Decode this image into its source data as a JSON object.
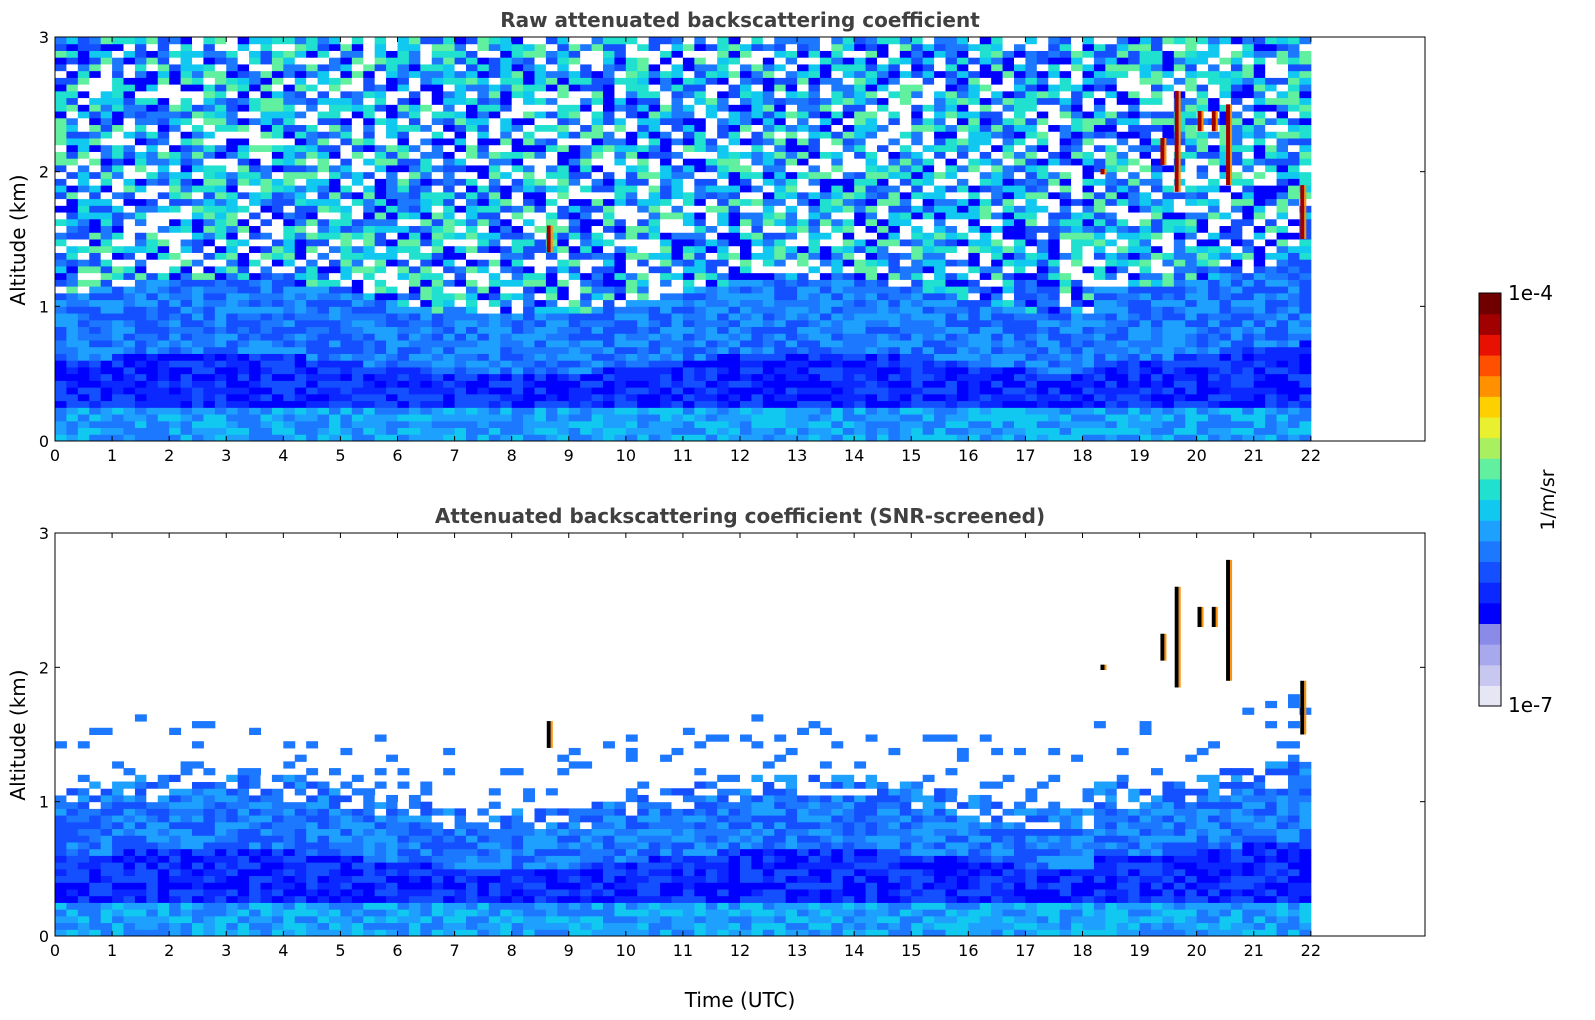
{
  "chart_data": [
    {
      "type": "heatmap",
      "title": "Raw attenuated backscattering coefficient",
      "xlabel": "",
      "ylabel": "Altitude (km)",
      "xlim": [
        0,
        24
      ],
      "ylim": [
        0,
        3
      ],
      "data_xlim": [
        0,
        22
      ],
      "xticks": [
        0,
        1,
        2,
        3,
        4,
        5,
        6,
        7,
        8,
        9,
        10,
        11,
        12,
        13,
        14,
        15,
        16,
        17,
        18,
        19,
        20,
        21,
        22
      ],
      "yticks": [
        0,
        1,
        2,
        3
      ],
      "colorscale": "log",
      "clim": [
        "1e-7",
        "1e-4"
      ],
      "description_layers": {
        "boundary_layer_top_km": 1.1,
        "surface_layer_top_km": 0.3,
        "noise_from_km": 1.0,
        "cloud_segments": [
          {
            "time": 8.65,
            "alt_min": 1.4,
            "alt_max": 1.6
          },
          {
            "time": 18.35,
            "alt_min": 1.98,
            "alt_max": 2.02
          },
          {
            "time": 19.4,
            "alt_min": 2.05,
            "alt_max": 2.25
          },
          {
            "time": 19.65,
            "alt_min": 1.85,
            "alt_max": 2.6
          },
          {
            "time": 20.05,
            "alt_min": 2.3,
            "alt_max": 2.45
          },
          {
            "time": 20.3,
            "alt_min": 2.3,
            "alt_max": 2.45
          },
          {
            "time": 20.55,
            "alt_min": 1.9,
            "alt_max": 2.5
          },
          {
            "time": 21.85,
            "alt_min": 1.5,
            "alt_max": 1.9
          }
        ]
      }
    },
    {
      "type": "heatmap",
      "title": "Attenuated backscattering coefficient (SNR-screened)",
      "xlabel": "Time (UTC)",
      "ylabel": "Altitude (km)",
      "xlim": [
        0,
        24
      ],
      "ylim": [
        0,
        3
      ],
      "data_xlim": [
        0,
        22
      ],
      "xticks": [
        0,
        1,
        2,
        3,
        4,
        5,
        6,
        7,
        8,
        9,
        10,
        11,
        12,
        13,
        14,
        15,
        16,
        17,
        18,
        19,
        20,
        21,
        22
      ],
      "yticks": [
        0,
        1,
        2,
        3
      ],
      "colorscale": "log",
      "clim": [
        "1e-7",
        "1e-4"
      ],
      "description_layers": {
        "boundary_layer_top_km": 1.1,
        "surface_layer_top_km": 0.3,
        "cloud_segments": [
          {
            "time": 8.65,
            "alt_min": 1.4,
            "alt_max": 1.6
          },
          {
            "time": 18.35,
            "alt_min": 1.98,
            "alt_max": 2.02
          },
          {
            "time": 19.4,
            "alt_min": 2.05,
            "alt_max": 2.25
          },
          {
            "time": 19.65,
            "alt_min": 1.85,
            "alt_max": 2.6
          },
          {
            "time": 20.05,
            "alt_min": 2.3,
            "alt_max": 2.45
          },
          {
            "time": 20.3,
            "alt_min": 2.3,
            "alt_max": 2.45
          },
          {
            "time": 20.55,
            "alt_min": 1.9,
            "alt_max": 2.8
          },
          {
            "time": 21.85,
            "alt_min": 1.5,
            "alt_max": 1.9
          }
        ]
      }
    }
  ],
  "colorbar": {
    "max_label": "1e-4",
    "min_label": "1e-7",
    "unit_label": "1/m/sr",
    "colors": [
      "#e6e6f5",
      "#c7c7f0",
      "#a8a8ec",
      "#8a8ae8",
      "#0000ff",
      "#0a28ff",
      "#1450ff",
      "#1c78ff",
      "#1ea0ff",
      "#10c8f0",
      "#20e0d0",
      "#60f0a0",
      "#a8f060",
      "#e8f030",
      "#ffd000",
      "#ff9000",
      "#ff5000",
      "#e81000",
      "#a00000",
      "#700000"
    ]
  }
}
